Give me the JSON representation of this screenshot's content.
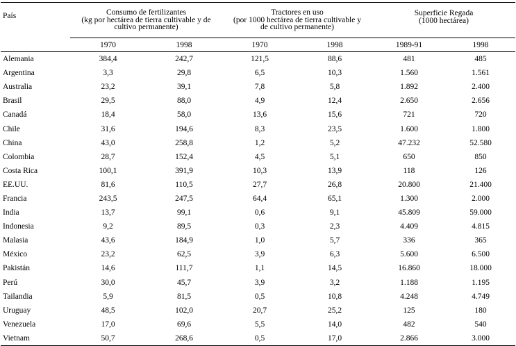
{
  "table": {
    "header": {
      "country_label": "País",
      "groups": [
        "Consumo de fertilizantes\n(kg por hectárea de tierra cultivable y de\ncultivo permanente)",
        "Tractores en uso\n(por 1000 hectárea de tierra cultivable y\nde cultivo permanente)",
        "Superficie Regada\n(1000 hectárea)"
      ],
      "years": [
        "1970",
        "1998",
        "1970",
        "1998",
        "1989-91",
        "1998"
      ]
    },
    "rows": [
      [
        "Alemania",
        "384,4",
        "242,7",
        "121,5",
        "88,6",
        "481",
        "485"
      ],
      [
        "Argentina",
        "3,3",
        "29,8",
        "6,5",
        "10,3",
        "1.560",
        "1.561"
      ],
      [
        "Australia",
        "23,2",
        "39,1",
        "7,8",
        "5,8",
        "1.892",
        "2.400"
      ],
      [
        "Brasil",
        "29,5",
        "88,0",
        "4,9",
        "12,4",
        "2.650",
        "2.656"
      ],
      [
        "Canadá",
        "18,4",
        "58,0",
        "13,6",
        "15,6",
        "721",
        "720"
      ],
      [
        "Chile",
        "31,6",
        "194,6",
        "8,3",
        "23,5",
        "1.600",
        "1.800"
      ],
      [
        "China",
        "43,0",
        "258,8",
        "1,2",
        "5,2",
        "47.232",
        "52.580"
      ],
      [
        "Colombia",
        "28,7",
        "152,4",
        "4,5",
        "5,1",
        "650",
        "850"
      ],
      [
        "Costa Rica",
        "100,1",
        "391,9",
        "10,3",
        "13,9",
        "118",
        "126"
      ],
      [
        "EE.UU.",
        "81,6",
        "110,5",
        "27,7",
        "26,8",
        "20.800",
        "21.400"
      ],
      [
        "Francia",
        "243,5",
        "247,5",
        "64,4",
        "65,1",
        "1.300",
        "2.000"
      ],
      [
        "India",
        "13,7",
        "99,1",
        "0,6",
        "9,1",
        "45.809",
        "59.000"
      ],
      [
        "Indonesia",
        "9,2",
        "89,5",
        "0,3",
        "2,3",
        "4.409",
        "4.815"
      ],
      [
        "Malasia",
        "43,6",
        "184,9",
        "1,0",
        "5,7",
        "336",
        "365"
      ],
      [
        "México",
        "23,2",
        "62,5",
        "3,9",
        "6,3",
        "5.600",
        "6.500"
      ],
      [
        "Pakistán",
        "14,6",
        "111,7",
        "1,1",
        "14,5",
        "16.860",
        "18.000"
      ],
      [
        "Perú",
        "30,0",
        "45,7",
        "3,9",
        "3,2",
        "1.188",
        "1.195"
      ],
      [
        "Tailandia",
        "5,9",
        "81,5",
        "0,5",
        "10,8",
        "4.248",
        "4.749"
      ],
      [
        "Uruguay",
        "48,5",
        "102,0",
        "20,7",
        "25,2",
        "125",
        "180"
      ],
      [
        "Venezuela",
        "17,0",
        "69,6",
        "5,5",
        "14,0",
        "482",
        "540"
      ],
      [
        "Vietnam",
        "50,7",
        "268,6",
        "0,5",
        "17,0",
        "2.866",
        "3.000"
      ]
    ]
  }
}
